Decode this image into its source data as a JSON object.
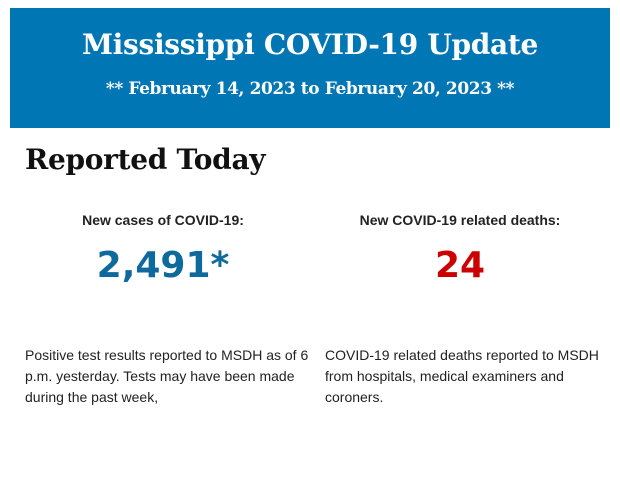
{
  "banner": {
    "title": "Mississippi COVID-19 Update",
    "dates": "** February 14, 2023 to February 20, 2023 **",
    "color": "#0176b4"
  },
  "section": {
    "heading": "Reported Today"
  },
  "cases": {
    "label": "New cases of COVID-19:",
    "value": "2,491*",
    "color": "#0e6a9c",
    "description": "Positive test results reported to MSDH as of 6 p.m. yesterday. Tests may have been made during the past week,"
  },
  "deaths": {
    "label": "New COVID-19 related deaths:",
    "value": "24",
    "color": "#cc0000",
    "description": "COVID-19 related deaths reported to MSDH from hospitals, medical examiners and coroners."
  }
}
